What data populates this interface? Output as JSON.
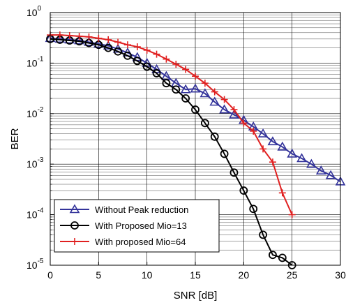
{
  "chart_data": {
    "type": "line",
    "title": "",
    "xlabel": "SNR [dB]",
    "ylabel": "BER",
    "xlim": [
      0,
      30
    ],
    "ylim": [
      1e-05,
      1
    ],
    "yscale": "log",
    "grid": "major and minor",
    "x_ticks": [
      0,
      5,
      10,
      15,
      20,
      25,
      30
    ],
    "x_tick_labels": [
      "0",
      "5",
      "10",
      "15",
      "20",
      "25",
      "30"
    ],
    "y_ticks": [
      1e-05,
      0.0001,
      0.001,
      0.01,
      0.1,
      1
    ],
    "y_tick_labels": [
      {
        "base": "10",
        "exp": "-5"
      },
      {
        "base": "10",
        "exp": "-4"
      },
      {
        "base": "10",
        "exp": "-3"
      },
      {
        "base": "10",
        "exp": "-2"
      },
      {
        "base": "10",
        "exp": "-1"
      },
      {
        "base": "10",
        "exp": "0"
      }
    ],
    "legend_position": "bottom-left",
    "series": [
      {
        "name": "Without Peak reduction",
        "color": "#33339a",
        "marker": "triangle",
        "x": [
          0,
          1,
          2,
          3,
          4,
          5,
          6,
          7,
          8,
          9,
          10,
          11,
          12,
          13,
          14,
          15,
          16,
          17,
          18,
          19,
          20,
          21,
          22,
          23,
          24,
          25,
          26,
          27,
          28,
          29,
          30
        ],
        "y": [
          0.31,
          0.3,
          0.29,
          0.28,
          0.26,
          0.24,
          0.22,
          0.19,
          0.16,
          0.13,
          0.1,
          0.075,
          0.055,
          0.04,
          0.03,
          0.031,
          0.025,
          0.017,
          0.012,
          0.0095,
          0.0074,
          0.0055,
          0.004,
          0.0028,
          0.0022,
          0.0016,
          0.0013,
          0.001,
          0.00074,
          0.0006,
          0.00045
        ]
      },
      {
        "name": "With Proposed Mio=13",
        "color": "#000000",
        "marker": "circle",
        "x": [
          0,
          1,
          2,
          3,
          4,
          5,
          6,
          7,
          8,
          9,
          10,
          11,
          12,
          13,
          14,
          15,
          16,
          17,
          18,
          19,
          20,
          21,
          22,
          23,
          24,
          25
        ],
        "y": [
          0.3,
          0.29,
          0.28,
          0.27,
          0.25,
          0.23,
          0.2,
          0.17,
          0.14,
          0.11,
          0.085,
          0.063,
          0.04,
          0.03,
          0.02,
          0.012,
          0.0065,
          0.0035,
          0.0016,
          0.00068,
          0.0003,
          0.00013,
          4e-05,
          1.6e-05,
          1.4e-05,
          1e-05
        ]
      },
      {
        "name": "With proposed Mio=64",
        "color": "#e02020",
        "marker": "plus",
        "x": [
          0,
          1,
          2,
          3,
          4,
          5,
          6,
          7,
          8,
          9,
          10,
          11,
          12,
          13,
          14,
          15,
          16,
          17,
          18,
          19,
          20,
          21,
          22,
          23,
          24,
          25
        ],
        "y": [
          0.36,
          0.36,
          0.35,
          0.34,
          0.33,
          0.31,
          0.29,
          0.26,
          0.23,
          0.21,
          0.18,
          0.15,
          0.12,
          0.095,
          0.075,
          0.055,
          0.04,
          0.027,
          0.019,
          0.012,
          0.0065,
          0.0045,
          0.002,
          0.0011,
          0.00027,
          0.0001
        ]
      }
    ]
  }
}
